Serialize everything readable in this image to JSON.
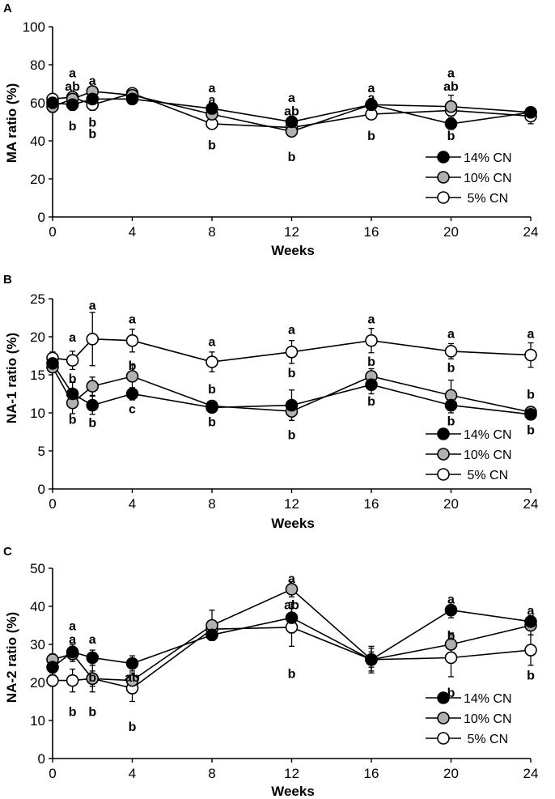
{
  "chart_data": [
    {
      "panel": "A",
      "type": "line",
      "xlabel": "Weeks",
      "ylabel": "MA ratio (%)",
      "xlim": [
        0,
        24
      ],
      "ylim": [
        0,
        100
      ],
      "xticks": [
        0,
        4,
        8,
        12,
        16,
        20,
        24
      ],
      "yticks": [
        0,
        20,
        40,
        60,
        80,
        100
      ],
      "x": [
        0,
        1,
        2,
        4,
        8,
        12,
        16,
        20,
        24
      ],
      "series": [
        {
          "name": "14% CN",
          "color": "#000000",
          "values": [
            60,
            59,
            62,
            62,
            57,
            50,
            59,
            49,
            55
          ],
          "errors": [
            2,
            3,
            3,
            2,
            2,
            3,
            2,
            3,
            2
          ]
        },
        {
          "name": "10% CN",
          "color": "#b0b0b0",
          "values": [
            58,
            62,
            66,
            64,
            54,
            45,
            59,
            58,
            55
          ],
          "errors": [
            3,
            2,
            2,
            2,
            3,
            2,
            2,
            6,
            2
          ]
        },
        {
          "name": "5% CN",
          "color": "#ffffff",
          "values": [
            62,
            63,
            59,
            65,
            49,
            47,
            54,
            56,
            53
          ],
          "errors": [
            2,
            2,
            3,
            2,
            2,
            3,
            2,
            3,
            4
          ]
        }
      ],
      "annotations": [
        {
          "x": 1,
          "y": 76,
          "text": "a"
        },
        {
          "x": 1,
          "y": 69,
          "text": "ab"
        },
        {
          "x": 1,
          "y": 48,
          "text": "b"
        },
        {
          "x": 2,
          "y": 72,
          "text": "a"
        },
        {
          "x": 2,
          "y": 50,
          "text": "b"
        },
        {
          "x": 2,
          "y": 44,
          "text": "b"
        },
        {
          "x": 8,
          "y": 68,
          "text": "a"
        },
        {
          "x": 8,
          "y": 62,
          "text": "a"
        },
        {
          "x": 8,
          "y": 38,
          "text": "b"
        },
        {
          "x": 12,
          "y": 63,
          "text": "a"
        },
        {
          "x": 12,
          "y": 56,
          "text": "ab"
        },
        {
          "x": 12,
          "y": 32,
          "text": "b"
        },
        {
          "x": 16,
          "y": 68,
          "text": "a"
        },
        {
          "x": 16,
          "y": 63,
          "text": "a"
        },
        {
          "x": 16,
          "y": 43,
          "text": "b"
        },
        {
          "x": 20,
          "y": 76,
          "text": "a"
        },
        {
          "x": 20,
          "y": 69,
          "text": "ab"
        },
        {
          "x": 20,
          "y": 43,
          "text": "b"
        }
      ],
      "legend": [
        "14% CN",
        "10% CN",
        " 5% CN"
      ],
      "legend_position": "lower-right"
    },
    {
      "panel": "B",
      "type": "line",
      "xlabel": "Weeks",
      "ylabel": "NA-1 ratio (%)",
      "xlim": [
        0,
        24
      ],
      "ylim": [
        0,
        25
      ],
      "xticks": [
        0,
        4,
        8,
        12,
        16,
        20,
        24
      ],
      "yticks": [
        0,
        5,
        10,
        15,
        20,
        25
      ],
      "x": [
        0,
        1,
        2,
        4,
        8,
        12,
        16,
        20,
        24
      ],
      "series": [
        {
          "name": "14% CN",
          "color": "#000000",
          "values": [
            16.5,
            12.5,
            11.0,
            12.5,
            10.7,
            11.0,
            13.7,
            11.0,
            9.8
          ],
          "errors": [
            0.6,
            1.5,
            1.2,
            0.8,
            0.6,
            2.0,
            1.2,
            1.0,
            0.6
          ]
        },
        {
          "name": "10% CN",
          "color": "#b0b0b0",
          "values": [
            16.0,
            11.3,
            13.5,
            14.8,
            10.9,
            10.2,
            14.8,
            12.3,
            10.1
          ],
          "errors": [
            0.6,
            1.4,
            1.2,
            1.5,
            0.7,
            1.2,
            1.0,
            2.0,
            0.7
          ]
        },
        {
          "name": "5% CN",
          "color": "#ffffff",
          "values": [
            17.2,
            16.9,
            19.7,
            19.5,
            16.7,
            18.0,
            19.5,
            18.1,
            17.6
          ],
          "errors": [
            0.8,
            1.2,
            3.5,
            1.5,
            1.3,
            1.5,
            1.6,
            1.0,
            1.6
          ]
        }
      ],
      "annotations": [
        {
          "x": 1,
          "y": 20.0,
          "text": "a"
        },
        {
          "x": 1,
          "y": 14.6,
          "text": "b"
        },
        {
          "x": 1,
          "y": 9.2,
          "text": "b"
        },
        {
          "x": 2,
          "y": 24.2,
          "text": "a"
        },
        {
          "x": 2,
          "y": 8.8,
          "text": "b"
        },
        {
          "x": 4,
          "y": 22.4,
          "text": "a"
        },
        {
          "x": 4,
          "y": 16.3,
          "text": "b"
        },
        {
          "x": 4,
          "y": 10.6,
          "text": "c"
        },
        {
          "x": 8,
          "y": 19.4,
          "text": "a"
        },
        {
          "x": 8,
          "y": 13.2,
          "text": "b"
        },
        {
          "x": 8,
          "y": 8.9,
          "text": "b"
        },
        {
          "x": 12,
          "y": 21.0,
          "text": "a"
        },
        {
          "x": 12,
          "y": 15.3,
          "text": "b"
        },
        {
          "x": 12,
          "y": 7.2,
          "text": "b"
        },
        {
          "x": 16,
          "y": 22.4,
          "text": "a"
        },
        {
          "x": 16,
          "y": 16.8,
          "text": "b"
        },
        {
          "x": 16,
          "y": 11.6,
          "text": "b"
        },
        {
          "x": 20,
          "y": 20.5,
          "text": "a"
        },
        {
          "x": 20,
          "y": 16.0,
          "text": "b"
        },
        {
          "x": 20,
          "y": 9.0,
          "text": "b"
        },
        {
          "x": 24,
          "y": 20.5,
          "text": "a"
        },
        {
          "x": 24,
          "y": 12.5,
          "text": "b"
        },
        {
          "x": 24,
          "y": 7.8,
          "text": "b"
        }
      ],
      "legend": [
        "14% CN",
        "10% CN",
        " 5% CN"
      ],
      "legend_position": "lower-right"
    },
    {
      "panel": "C",
      "type": "line",
      "xlabel": "Weeks",
      "ylabel": "NA-2 ratio (%)",
      "xlim": [
        0,
        24
      ],
      "ylim": [
        0,
        50
      ],
      "xticks": [
        0,
        4,
        8,
        12,
        16,
        20,
        24
      ],
      "yticks": [
        0,
        10,
        20,
        30,
        40,
        50
      ],
      "x": [
        0,
        1,
        2,
        4,
        8,
        12,
        16,
        20,
        24
      ],
      "series": [
        {
          "name": "14% CN",
          "color": "#000000",
          "values": [
            24,
            28,
            26.5,
            25,
            32.5,
            37,
            26,
            39,
            36
          ],
          "errors": [
            1.5,
            2,
            2,
            2,
            1.5,
            4,
            2,
            2,
            1.5
          ]
        },
        {
          "name": "10% CN",
          "color": "#b0b0b0",
          "values": [
            26,
            27.5,
            21,
            20.5,
            35,
            44.5,
            26,
            30,
            35
          ],
          "errors": [
            1.5,
            2,
            2,
            2,
            4,
            2,
            3.5,
            3,
            2.5
          ]
        },
        {
          "name": "5% CN",
          "color": "#ffffff",
          "values": [
            20.5,
            20.5,
            21,
            18.5,
            34,
            34.5,
            26,
            26.5,
            28.5
          ],
          "errors": [
            1.5,
            3,
            3.5,
            3.5,
            2,
            5,
            3,
            5,
            4
          ]
        }
      ],
      "annotations": [
        {
          "x": 1,
          "y": 35,
          "text": "a"
        },
        {
          "x": 1,
          "y": 31.5,
          "text": "a"
        },
        {
          "x": 1,
          "y": 12.5,
          "text": "b"
        },
        {
          "x": 2,
          "y": 31.5,
          "text": "a"
        },
        {
          "x": 2,
          "y": 21.5,
          "text": "b"
        },
        {
          "x": 2,
          "y": 12.5,
          "text": "b"
        },
        {
          "x": 4,
          "y": 21.5,
          "text": "ab"
        },
        {
          "x": 4,
          "y": 8.5,
          "text": "b"
        },
        {
          "x": 12,
          "y": 47.5,
          "text": "a"
        },
        {
          "x": 12,
          "y": 40.5,
          "text": "ab"
        },
        {
          "x": 12,
          "y": 22.5,
          "text": "b"
        },
        {
          "x": 20,
          "y": 42,
          "text": "a"
        },
        {
          "x": 20,
          "y": 32.5,
          "text": "b"
        },
        {
          "x": 20,
          "y": 17.5,
          "text": "b"
        },
        {
          "x": 24,
          "y": 39,
          "text": "a"
        },
        {
          "x": 24,
          "y": 37,
          "text": "a"
        },
        {
          "x": 24,
          "y": 22,
          "text": "b"
        }
      ],
      "legend": [
        "14% CN",
        "10% CN",
        " 5% CN"
      ],
      "legend_position": "lower-right"
    }
  ]
}
